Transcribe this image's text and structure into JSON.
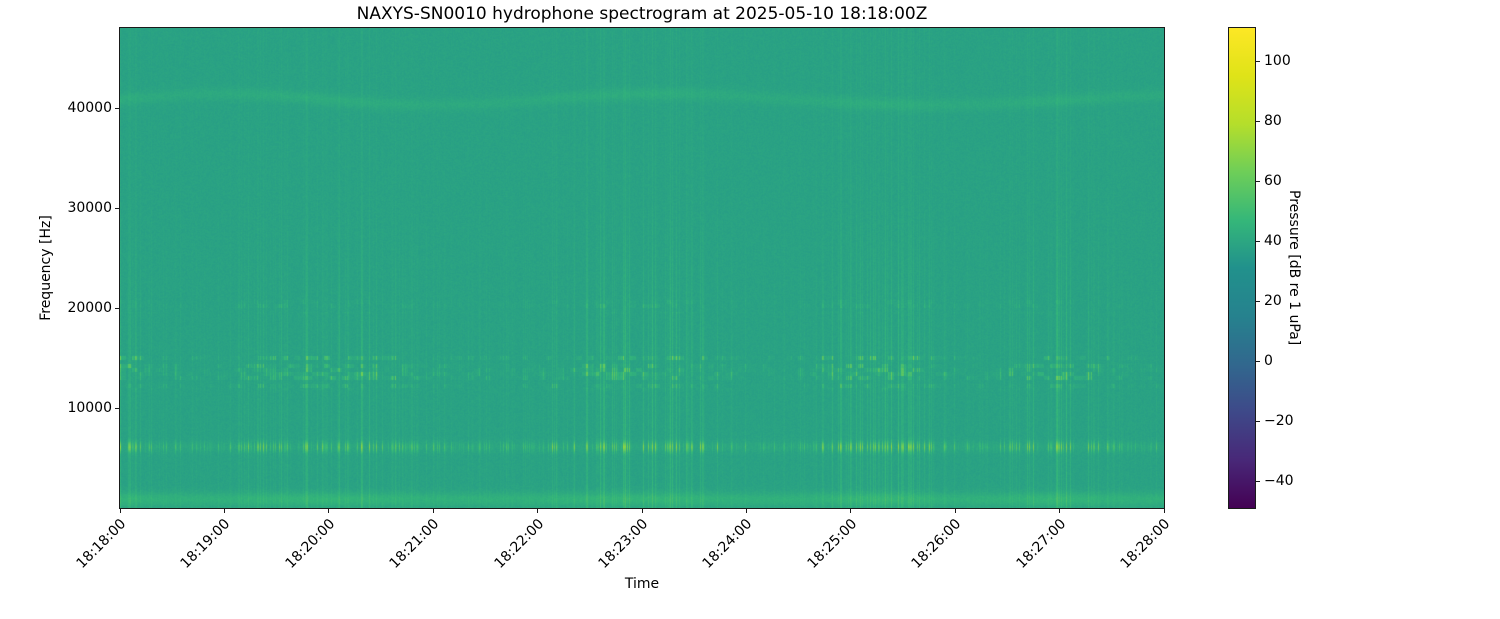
{
  "chart_data": {
    "type": "heatmap",
    "subtype": "spectrogram",
    "title": "NAXYS-SN0010 hydrophone spectrogram at 2025-05-10 18:18:00Z",
    "xlabel": "Time",
    "ylabel": "Frequency [Hz]",
    "grid": false,
    "x_tick_labels": [
      "18:18:00",
      "18:19:00",
      "18:20:00",
      "18:21:00",
      "18:22:00",
      "18:23:00",
      "18:24:00",
      "18:25:00",
      "18:26:00",
      "18:27:00",
      "18:28:00"
    ],
    "x_tick_rotation_deg": 45,
    "y_tick_values": [
      10000,
      20000,
      30000,
      40000
    ],
    "y_tick_labels": [
      "10000",
      "20000",
      "30000",
      "40000"
    ],
    "y_range_hz": [
      0,
      48000
    ],
    "background_level_db": 38,
    "noise_db": 1.6,
    "striations": {
      "description": "irregular clustered vertical broadband pulse lines",
      "density": 0.5,
      "max_boost_db": 9,
      "fade_above_hz": 17000,
      "fade_min": 0.35
    },
    "bands": [
      {
        "name": "low-frequency-band",
        "freq_hz": [
          100,
          1700
        ],
        "style": "smooth",
        "boost_db": 8
      },
      {
        "name": "tonal-band-6khz",
        "freq_hz": [
          5600,
          6700
        ],
        "style": "blobs",
        "boost_db": 4,
        "blob_boost_db": 26
      },
      {
        "name": "speckle-band-12-16khz",
        "freq_hz": [
          11600,
          16200
        ],
        "style": "speckle",
        "boost_db": 22
      },
      {
        "name": "speckle-band-20khz",
        "freq_hz": [
          19400,
          21200
        ],
        "style": "speckle",
        "boost_db": 11
      },
      {
        "name": "faint-band-41khz",
        "freq_hz": [
          40200,
          41600
        ],
        "style": "smooth",
        "boost_db": 4,
        "wavy": true
      }
    ],
    "colorbar": {
      "label": "Pressure [dB re 1 uPa]",
      "tick_values": [
        100,
        80,
        60,
        40,
        20,
        0,
        -20,
        -40
      ],
      "tick_labels": [
        "100",
        "80",
        "60",
        "40",
        "20",
        "0",
        "−20",
        "−40"
      ],
      "range_db": [
        -49,
        111
      ],
      "colormap": "viridis",
      "colormap_stops": [
        {
          "t": 0.0,
          "color": "#440154"
        },
        {
          "t": 0.1,
          "color": "#482878"
        },
        {
          "t": 0.2,
          "color": "#3e4989"
        },
        {
          "t": 0.3,
          "color": "#31688e"
        },
        {
          "t": 0.4,
          "color": "#26828e"
        },
        {
          "t": 0.5,
          "color": "#21918c"
        },
        {
          "t": 0.6,
          "color": "#35b779"
        },
        {
          "t": 0.7,
          "color": "#6ece58"
        },
        {
          "t": 0.8,
          "color": "#b5de2b"
        },
        {
          "t": 0.9,
          "color": "#dfe318"
        },
        {
          "t": 1.0,
          "color": "#fde725"
        }
      ]
    },
    "colors": {
      "plot_background": "#22a487",
      "axes_edge": "#1a1a1a",
      "text": "#000000",
      "figure_background": "#ffffff"
    }
  }
}
